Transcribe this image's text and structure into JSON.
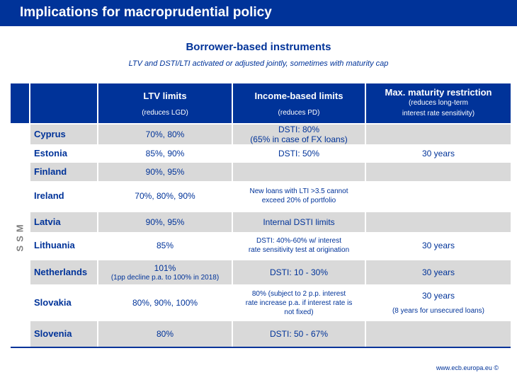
{
  "header": {
    "title": "Implications for macroprudential policy"
  },
  "subtitle": "Borrower-based instruments",
  "subnote": "LTV and DSTI/LTI activated or adjusted jointly, sometimes with maturity cap",
  "table": {
    "group_label": "SSM",
    "columns": [
      {
        "title": "LTV limits",
        "subtitle": "(reduces LGD)"
      },
      {
        "title": "Income-based limits",
        "subtitle": "(reduces PD)"
      },
      {
        "title": "Max. maturity restriction",
        "subtitle_l1": "(reduces long-term",
        "subtitle_l2": "interest rate sensitivity)"
      }
    ],
    "rows": [
      {
        "country": "Cyprus",
        "ltv": "70%, 80%",
        "income_l1": "DSTI: 80%",
        "income_l2": "(65% in case of FX loans)",
        "maturity": ""
      },
      {
        "country": "Estonia",
        "ltv": "85%, 90%",
        "income": "DSTI: 50%",
        "maturity": "30 years"
      },
      {
        "country": "Finland",
        "ltv": "90%, 95%",
        "income": "",
        "maturity": ""
      },
      {
        "country": "Ireland",
        "ltv": "70%, 80%, 90%",
        "income_l1": "New loans with LTI >3.5 cannot",
        "income_l2": "exceed 20% of portfolio",
        "maturity": ""
      },
      {
        "country": "Latvia",
        "ltv": "90%, 95%",
        "income": "Internal DSTI limits",
        "maturity": ""
      },
      {
        "country": "Lithuania",
        "ltv": "85%",
        "income_l1": "DSTI: 40%-60% w/ interest",
        "income_l2": "rate sensitivity test at origination",
        "maturity": "30 years"
      },
      {
        "country": "Netherlands",
        "ltv_l1": "101%",
        "ltv_l2": "(1pp decline p.a. to 100% in 2018)",
        "income": "DSTI: 10 - 30%",
        "maturity": "30 years"
      },
      {
        "country": "Slovakia",
        "ltv": "80%, 90%, 100%",
        "income_l1": "80% (subject to 2 p.p. interest",
        "income_l2": "rate increase p.a. if interest rate is",
        "income_l3": "not fixed)",
        "maturity_l1": "30 years",
        "maturity_l2": "(8 years for unsecured loans)"
      },
      {
        "country": "Slovenia",
        "ltv": "80%",
        "income": "DSTI: 50 - 67%",
        "maturity": ""
      }
    ]
  },
  "footer": "www.ecb.europa.eu ©"
}
